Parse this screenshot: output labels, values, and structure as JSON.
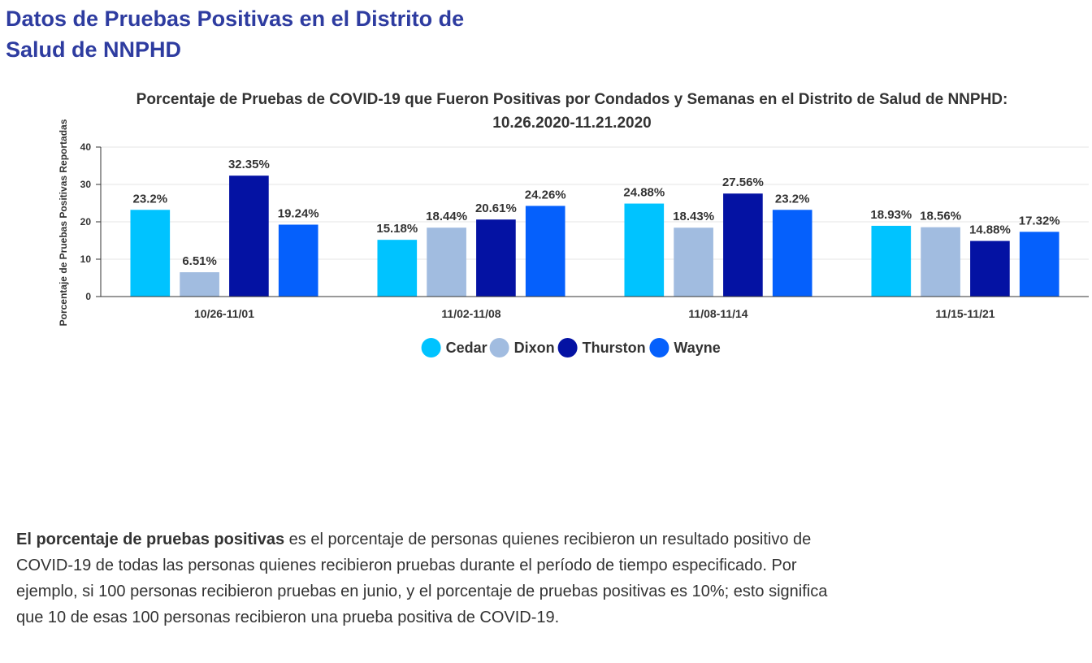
{
  "header": {
    "title": "Datos de Pruebas Positivas en el Distrito de Salud de NNPHD"
  },
  "chart_data": {
    "type": "bar",
    "title_line1": "Porcentaje de Pruebas de COVID-19 que Fueron Positivas por Condados y Semanas en el Distrito de Salud de NNPHD:",
    "title_line2": "10.26.2020-11.21.2020",
    "xlabel": "",
    "ylabel": "Porcentaje de Pruebas Positivas Reportadas",
    "ylim": [
      0,
      40
    ],
    "yticks": [
      0,
      10,
      20,
      30,
      40
    ],
    "grid": true,
    "legend_position": "bottom-center",
    "categories": [
      "10/26-11/01",
      "11/02-11/08",
      "11/08-11/14",
      "11/15-11/21"
    ],
    "series": [
      {
        "name": "Cedar",
        "color": "#00c3ff",
        "values": [
          23.2,
          15.18,
          24.88,
          18.93
        ],
        "labels": [
          "23.2%",
          "15.18%",
          "24.88%",
          "18.93%"
        ]
      },
      {
        "name": "Dixon",
        "color": "#a1bce0",
        "values": [
          6.51,
          18.44,
          18.43,
          18.56
        ],
        "labels": [
          "6.51%",
          "18.44%",
          "18.43%",
          "18.56%"
        ]
      },
      {
        "name": "Thurston",
        "color": "#0412a3",
        "values": [
          32.35,
          20.61,
          27.56,
          14.88
        ],
        "labels": [
          "32.35%",
          "20.61%",
          "27.56%",
          "14.88%"
        ]
      },
      {
        "name": "Wayne",
        "color": "#0560fc",
        "values": [
          19.24,
          24.26,
          23.2,
          17.32
        ],
        "labels": [
          "19.24%",
          "24.26%",
          "23.2%",
          "17.32%"
        ]
      }
    ]
  },
  "explanation": {
    "bold_term": "El porcentaje de pruebas positivas",
    "text": " es el porcentaje de personas quienes recibieron un resultado positivo de COVID-19 de todas las personas quienes recibieron pruebas durante el período de tiempo especificado. Por ejemplo, si 100 personas recibieron pruebas en junio, y el porcentaje de pruebas positivas es 10%; esto significa que 10 de esas 100 personas recibieron una prueba positiva de COVID-19."
  }
}
